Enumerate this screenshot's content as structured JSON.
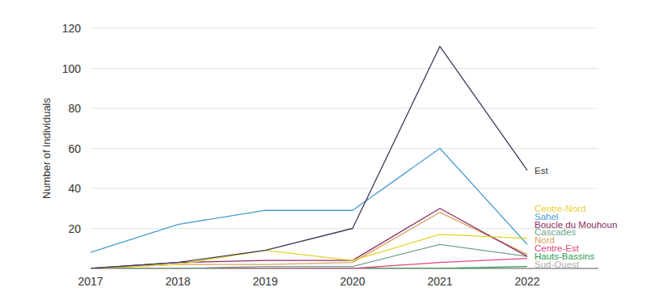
{
  "chart_data": {
    "type": "line",
    "y_label": "Number of individuals",
    "x": [
      2017,
      2018,
      2019,
      2020,
      2021,
      2022
    ],
    "xlim": [
      2017,
      2022
    ],
    "xticks": [
      2017,
      2018,
      2019,
      2020,
      2021,
      2022
    ],
    "ylim": [
      0,
      120
    ],
    "yticks": [
      20,
      40,
      60,
      80,
      100,
      120
    ],
    "grid": true,
    "series": [
      {
        "name": "Est",
        "color": "#3b3a5a",
        "values": [
          0,
          3,
          9,
          20,
          111,
          49
        ]
      },
      {
        "name": "Centre-Nord",
        "color": "#e3d12a",
        "values": [
          0,
          2,
          9,
          4,
          17,
          15
        ]
      },
      {
        "name": "Sahel",
        "color": "#4a9bd1",
        "values": [
          8,
          22,
          29,
          29,
          60,
          12
        ]
      },
      {
        "name": "Boucle du Mouhoun",
        "color": "#8e2b62",
        "values": [
          0,
          3,
          4,
          4,
          30,
          6
        ]
      },
      {
        "name": "Cascades",
        "color": "#6fa58e",
        "values": [
          0,
          0,
          1,
          1,
          12,
          6
        ]
      },
      {
        "name": "Nord",
        "color": "#d9a25e",
        "values": [
          0,
          2,
          2,
          3,
          28,
          7
        ]
      },
      {
        "name": "Centre-Est",
        "color": "#e0467c",
        "values": [
          0,
          0,
          0,
          0,
          3,
          5
        ]
      },
      {
        "name": "Hauts-Bassins",
        "color": "#2e9a50",
        "values": [
          0,
          0,
          0,
          0,
          0,
          1
        ]
      },
      {
        "name": "Sud-Ouest",
        "color": "#b0b0b0",
        "values": [
          0,
          0,
          0,
          0,
          0,
          0
        ]
      }
    ]
  }
}
